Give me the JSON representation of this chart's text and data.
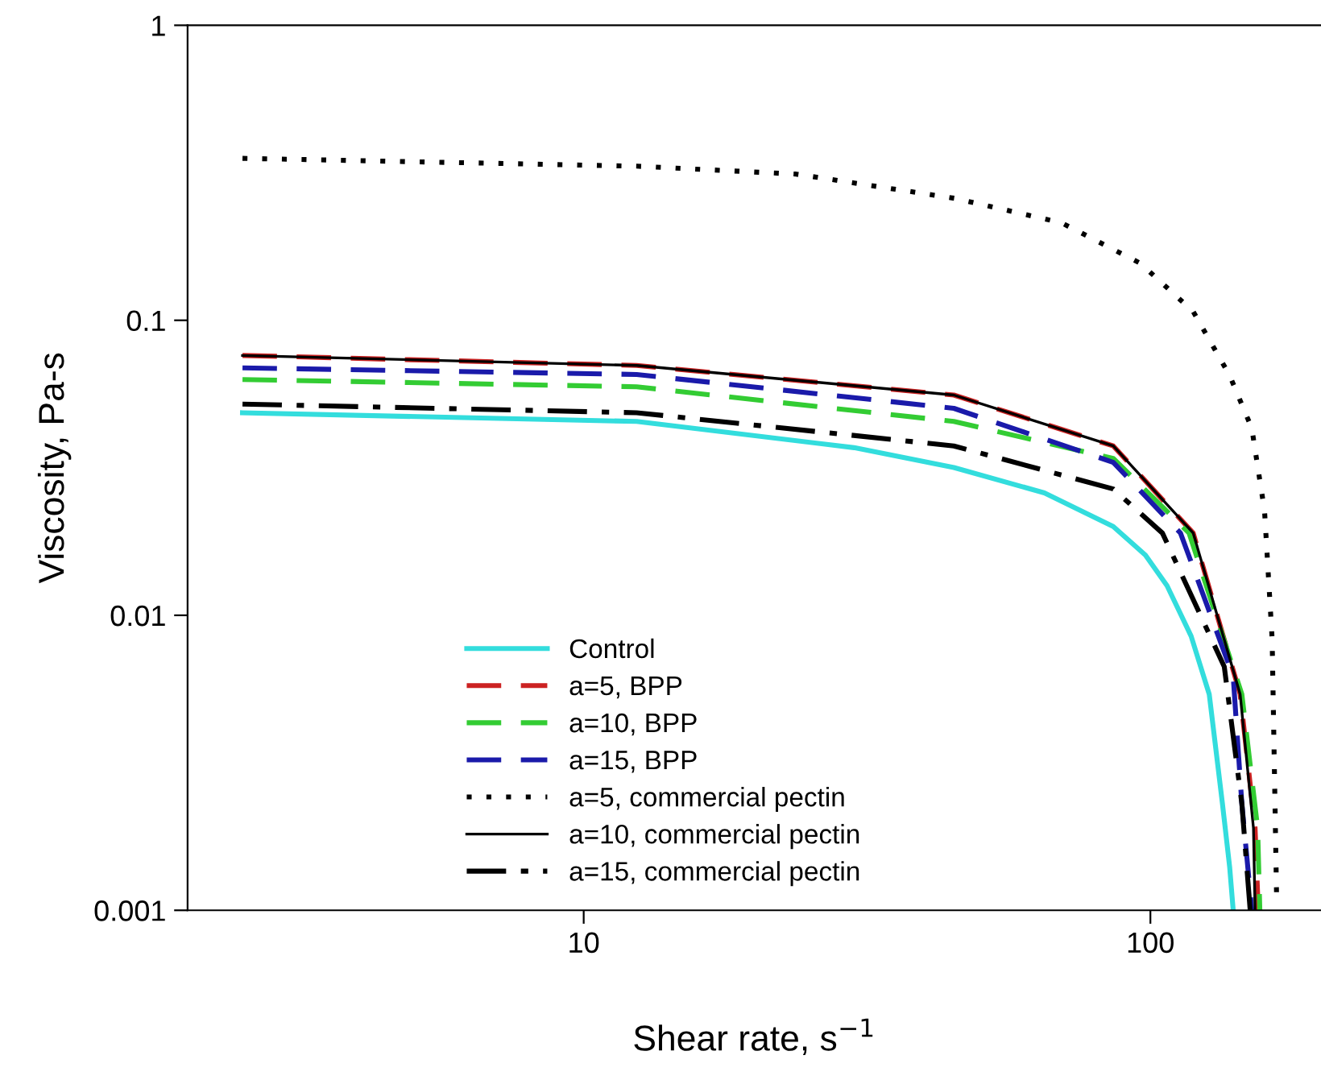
{
  "chart_data": {
    "type": "line",
    "xlabel": "Shear rate, s$^{−1}$",
    "ylabel": "Viscosity, Pa-s",
    "log": "xy",
    "xlim": [
      2,
      200
    ],
    "xticks": [
      10,
      100
    ],
    "ylim": [
      0.001,
      1
    ],
    "yticks": [
      {
        "value": 0.001,
        "label": "0.001"
      },
      {
        "value": 0.01,
        "label": "0.01"
      },
      {
        "value": 0.1,
        "label": "0.1"
      },
      1
    ],
    "grid": false,
    "legend": "bottom",
    "marker": "none",
    "series": [
      {
        "name": "Control",
        "color": "#33dddd",
        "line_style": "solid",
        "x": [
          2.5,
          12.4,
          30,
          45,
          65,
          86,
          98,
          107,
          118,
          127,
          134,
          138,
          140
        ],
        "values": [
          0.0486,
          0.0454,
          0.037,
          0.0317,
          0.026,
          0.02,
          0.016,
          0.0126,
          0.0085,
          0.0054,
          0.0023,
          0.0014,
          0.001
        ]
      },
      {
        "name": "a=5, BPP",
        "color": "#cc2222",
        "line_style": "dashed",
        "x": [
          2.5,
          12.4,
          45,
          86,
          119,
          144,
          153,
          155
        ],
        "values": [
          0.076,
          0.0703,
          0.0558,
          0.0375,
          0.019,
          0.0054,
          0.0019,
          0.001
        ]
      },
      {
        "name": "a=10, BPP",
        "color": "#33cc33",
        "line_style": "dashed",
        "x": [
          2.5,
          12.4,
          45,
          86,
          117,
          145,
          154.6,
          156
        ],
        "values": [
          0.063,
          0.0595,
          0.0454,
          0.034,
          0.019,
          0.0054,
          0.0019,
          0.001
        ]
      },
      {
        "name": "a=15, BPP",
        "color": "#1a1aaa",
        "line_style": "dashed",
        "x": [
          2.5,
          12.4,
          45,
          86,
          113,
          140,
          145,
          151
        ],
        "values": [
          0.069,
          0.0655,
          0.0503,
          0.033,
          0.019,
          0.0062,
          0.0023,
          0.001
        ]
      },
      {
        "name": "a=5, commercial pectin",
        "color": "#000000",
        "line_style": "dotted",
        "x": [
          2.5,
          12.4,
          23.7,
          45.2,
          69.7,
          96,
          119,
          138,
          151,
          159,
          164,
          167
        ],
        "values": [
          0.354,
          0.333,
          0.313,
          0.259,
          0.214,
          0.156,
          0.107,
          0.065,
          0.043,
          0.0226,
          0.0083,
          0.0011
        ]
      },
      {
        "name": "a=10, commercial pectin",
        "color": "#000000",
        "line_style": "solid",
        "x": [
          2.5,
          12.4,
          45,
          86,
          119,
          144,
          152,
          153
        ],
        "values": [
          0.076,
          0.0703,
          0.0558,
          0.0375,
          0.019,
          0.0054,
          0.0019,
          0.001
        ]
      },
      {
        "name": "a=15, commercial pectin",
        "color": "#000000",
        "line_style": "dashdot",
        "x": [
          2.5,
          12.4,
          45,
          86,
          105,
          135,
          145,
          150
        ],
        "values": [
          0.052,
          0.0486,
          0.0375,
          0.0268,
          0.019,
          0.0067,
          0.0023,
          0.001
        ]
      }
    ]
  }
}
